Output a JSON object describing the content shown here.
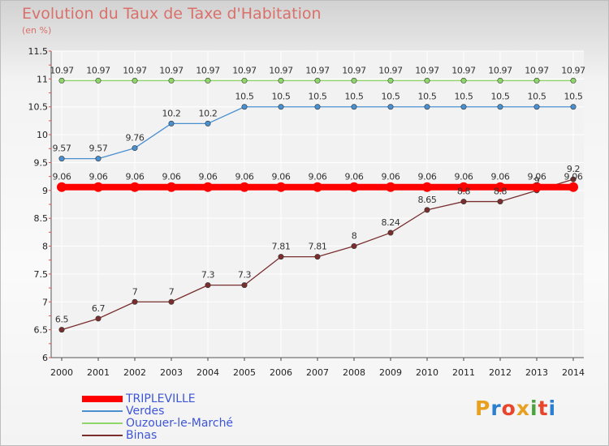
{
  "header": {
    "title": "Evolution du Taux de Taxe d'Habitation",
    "unit": "(en %)"
  },
  "brand": {
    "text": "Proxiti",
    "colors": [
      "#e8a021",
      "#2a7fd0",
      "#e8452c",
      "#e8a021",
      "#4aa43c",
      "#e8452c",
      "#2a7fd0"
    ]
  },
  "colors": {
    "title": "#d9706a",
    "legend_text": "#3d55d8"
  },
  "chart_data": {
    "type": "line",
    "title": "Evolution du Taux de Taxe d'Habitation",
    "ylabel": "(en %)",
    "xlabel": "",
    "x": [
      "2000",
      "2001",
      "2002",
      "2003",
      "2004",
      "2005",
      "2006",
      "2007",
      "2008",
      "2009",
      "2010",
      "2011",
      "2012",
      "2013",
      "2014"
    ],
    "ylim": [
      6,
      11.5
    ],
    "yticks": [
      "6",
      "6.5",
      "7",
      "7.5",
      "8",
      "8.5",
      "9",
      "9.5",
      "10",
      "10.5",
      "11",
      "11.5"
    ],
    "grid": true,
    "legend_position": "bottom-left",
    "series": [
      {
        "name": "TRIPLEVILLE",
        "color": "#ff0000",
        "values": [
          9.06,
          9.06,
          9.06,
          9.06,
          9.06,
          9.06,
          9.06,
          9.06,
          9.06,
          9.06,
          9.06,
          9.06,
          9.06,
          9.06,
          9.06
        ],
        "labels": [
          "9.06",
          "9.06",
          "9.06",
          "9.06",
          "9.06",
          "9.06",
          "9.06",
          "9.06",
          "9.06",
          "9.06",
          "9.06",
          "9.06",
          "9.06",
          "9.06",
          "9.06"
        ]
      },
      {
        "name": "Verdes",
        "color": "#4a8fd0",
        "values": [
          9.57,
          9.57,
          9.76,
          10.2,
          10.2,
          10.5,
          10.5,
          10.5,
          10.5,
          10.5,
          10.5,
          10.5,
          10.5,
          10.5,
          10.5
        ],
        "labels": [
          "9.57",
          "9.57",
          "9.76",
          "10.2",
          "10.2",
          "10.5",
          "10.5",
          "10.5",
          "10.5",
          "10.5",
          "10.5",
          "10.5",
          "10.5",
          "10.5",
          "10.5"
        ]
      },
      {
        "name": "Ouzouer-le-Marché",
        "color": "#8fd66b",
        "values": [
          10.97,
          10.97,
          10.97,
          10.97,
          10.97,
          10.97,
          10.97,
          10.97,
          10.97,
          10.97,
          10.97,
          10.97,
          10.97,
          10.97,
          10.97
        ],
        "labels": [
          "10.97",
          "10.97",
          "10.97",
          "10.97",
          "10.97",
          "10.97",
          "10.97",
          "10.97",
          "10.97",
          "10.97",
          "10.97",
          "10.97",
          "10.97",
          "10.97",
          "10.97"
        ]
      },
      {
        "name": "Binas",
        "color": "#7a2e2e",
        "values": [
          6.5,
          6.7,
          7,
          7,
          7.3,
          7.3,
          7.81,
          7.81,
          8,
          8.24,
          8.65,
          8.8,
          8.8,
          9,
          9.2
        ],
        "labels": [
          "6.5",
          "6.7",
          "7",
          "7",
          "7.3",
          "7.3",
          "7.81",
          "7.81",
          "8",
          "8.24",
          "8.65",
          "8.8",
          "8.8",
          "9",
          "9.2"
        ]
      }
    ]
  }
}
